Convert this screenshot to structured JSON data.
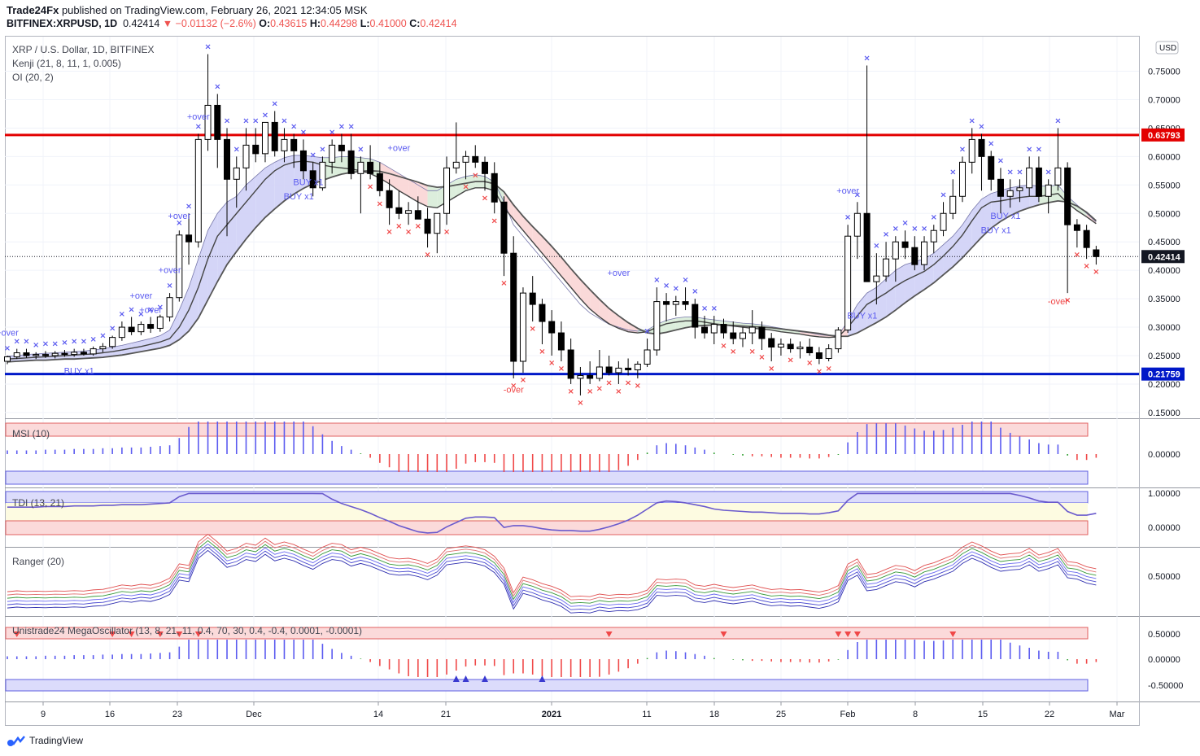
{
  "header": {
    "publisher": "Trade24Fx",
    "published_text": "published on TradingView.com, February 26, 2021 12:34:05 MSK",
    "symbol": "BITFINEX:XRPUSD, 1D",
    "last": "0.42414",
    "change": "−0.01132 (−2.6%)",
    "open_label": "O:",
    "open": "0.43615",
    "high_label": "H:",
    "high": "0.44298",
    "low_label": "L:",
    "low": "0.41000",
    "close_label": "C:",
    "close": "0.42414"
  },
  "legend": {
    "title": "XRP / U.S. Dollar, 1D, BITFINEX",
    "kenji": "Kenji (21, 8, 11, 1, 0.005)",
    "oi": "OI (20, 2)"
  },
  "panes": {
    "msi": "MSI (10)",
    "tdi": "TDI (13, 21)",
    "ranger": "Ranger (20)",
    "mega": "Unistrade24 MegaOscillator (13, 8, 21, 11, 0.4, 70, 30, 0.4, -0.4, 0.0001, -0.0001)"
  },
  "currency": "USD",
  "footer": {
    "brand": "TradingView"
  },
  "colors": {
    "up": "#ffffff",
    "down": "#000000",
    "resistance": "#e30000",
    "support": "#0018c8",
    "blue_marker": "#5b5bf0",
    "red_marker": "#f04848"
  },
  "chart_data": {
    "type": "candlestick",
    "y_ticks": [
      "0.75000",
      "0.70000",
      "0.65000",
      "0.60000",
      "0.55000",
      "0.50000",
      "0.45000",
      "0.40000",
      "0.35000",
      "0.30000",
      "0.25000",
      "0.20000",
      "0.15000"
    ],
    "x_ticks": [
      "9",
      "16",
      "23",
      "Dec",
      "14",
      "21",
      "2021",
      "11",
      "18",
      "25",
      "Feb",
      "8",
      "15",
      "22",
      "Mar"
    ],
    "resistance": {
      "value": 0.63793,
      "label": "0.63793"
    },
    "support": {
      "value": 0.21759,
      "label": "0.21759"
    },
    "last_price": {
      "value": 0.42414,
      "label": "0.42414"
    },
    "annotations": [
      "+over",
      "+over",
      "+over",
      "+over",
      "+over",
      "+over",
      "+over",
      "+over",
      "+over",
      "-over",
      "-over",
      "BUY x1",
      "BUY x1",
      "BUY x1",
      "BUY x1",
      "BUY x1",
      "BUY x1"
    ],
    "msi_ticks": [
      "0.00000"
    ],
    "tdi_ticks": [
      "1.00000",
      "0.00000"
    ],
    "ranger_ticks": [
      "0.50000"
    ],
    "mega_ticks": [
      "0.50000",
      "0.00000",
      "-0.50000"
    ],
    "candles": [
      [
        0.24,
        0.25,
        0.235,
        0.248
      ],
      [
        0.248,
        0.262,
        0.244,
        0.255
      ],
      [
        0.255,
        0.262,
        0.246,
        0.25
      ],
      [
        0.25,
        0.256,
        0.244,
        0.252
      ],
      [
        0.252,
        0.258,
        0.246,
        0.25
      ],
      [
        0.25,
        0.258,
        0.245,
        0.254
      ],
      [
        0.254,
        0.26,
        0.248,
        0.252
      ],
      [
        0.252,
        0.262,
        0.248,
        0.256
      ],
      [
        0.256,
        0.262,
        0.25,
        0.253
      ],
      [
        0.253,
        0.266,
        0.25,
        0.262
      ],
      [
        0.262,
        0.272,
        0.256,
        0.266
      ],
      [
        0.266,
        0.285,
        0.262,
        0.282
      ],
      [
        0.282,
        0.31,
        0.276,
        0.3
      ],
      [
        0.3,
        0.318,
        0.286,
        0.292
      ],
      [
        0.292,
        0.31,
        0.286,
        0.305
      ],
      [
        0.305,
        0.318,
        0.29,
        0.298
      ],
      [
        0.298,
        0.322,
        0.292,
        0.318
      ],
      [
        0.318,
        0.36,
        0.31,
        0.352
      ],
      [
        0.352,
        0.47,
        0.345,
        0.462
      ],
      [
        0.462,
        0.5,
        0.41,
        0.45
      ],
      [
        0.45,
        0.64,
        0.44,
        0.63
      ],
      [
        0.63,
        0.78,
        0.61,
        0.69
      ],
      [
        0.69,
        0.71,
        0.58,
        0.63
      ],
      [
        0.63,
        0.65,
        0.46,
        0.56
      ],
      [
        0.56,
        0.6,
        0.51,
        0.58
      ],
      [
        0.58,
        0.65,
        0.54,
        0.62
      ],
      [
        0.62,
        0.65,
        0.59,
        0.605
      ],
      [
        0.605,
        0.66,
        0.59,
        0.66
      ],
      [
        0.66,
        0.68,
        0.6,
        0.61
      ],
      [
        0.61,
        0.65,
        0.59,
        0.63
      ],
      [
        0.63,
        0.64,
        0.58,
        0.61
      ],
      [
        0.61,
        0.63,
        0.56,
        0.575
      ],
      [
        0.575,
        0.59,
        0.53,
        0.545
      ],
      [
        0.545,
        0.6,
        0.54,
        0.59
      ],
      [
        0.59,
        0.63,
        0.57,
        0.62
      ],
      [
        0.62,
        0.64,
        0.59,
        0.61
      ],
      [
        0.61,
        0.64,
        0.56,
        0.57
      ],
      [
        0.57,
        0.6,
        0.5,
        0.59
      ],
      [
        0.59,
        0.62,
        0.56,
        0.57
      ],
      [
        0.57,
        0.59,
        0.53,
        0.54
      ],
      [
        0.54,
        0.56,
        0.48,
        0.51
      ],
      [
        0.51,
        0.54,
        0.49,
        0.5
      ],
      [
        0.5,
        0.52,
        0.48,
        0.505
      ],
      [
        0.505,
        0.53,
        0.49,
        0.49
      ],
      [
        0.49,
        0.51,
        0.44,
        0.465
      ],
      [
        0.465,
        0.5,
        0.43,
        0.5
      ],
      [
        0.5,
        0.6,
        0.48,
        0.58
      ],
      [
        0.58,
        0.66,
        0.57,
        0.59
      ],
      [
        0.59,
        0.61,
        0.56,
        0.6
      ],
      [
        0.6,
        0.62,
        0.58,
        0.59
      ],
      [
        0.59,
        0.6,
        0.54,
        0.57
      ],
      [
        0.57,
        0.59,
        0.5,
        0.52
      ],
      [
        0.52,
        0.53,
        0.39,
        0.43
      ],
      [
        0.43,
        0.46,
        0.21,
        0.24
      ],
      [
        0.24,
        0.37,
        0.22,
        0.36
      ],
      [
        0.36,
        0.39,
        0.31,
        0.34
      ],
      [
        0.34,
        0.35,
        0.27,
        0.31
      ],
      [
        0.31,
        0.33,
        0.25,
        0.29
      ],
      [
        0.29,
        0.31,
        0.24,
        0.26
      ],
      [
        0.26,
        0.28,
        0.2,
        0.21
      ],
      [
        0.21,
        0.23,
        0.18,
        0.215
      ],
      [
        0.215,
        0.24,
        0.2,
        0.21
      ],
      [
        0.21,
        0.26,
        0.205,
        0.23
      ],
      [
        0.23,
        0.25,
        0.215,
        0.22
      ],
      [
        0.22,
        0.24,
        0.2,
        0.228
      ],
      [
        0.228,
        0.245,
        0.215,
        0.225
      ],
      [
        0.225,
        0.24,
        0.21,
        0.235
      ],
      [
        0.235,
        0.28,
        0.23,
        0.26
      ],
      [
        0.26,
        0.37,
        0.25,
        0.345
      ],
      [
        0.345,
        0.36,
        0.31,
        0.34
      ],
      [
        0.34,
        0.355,
        0.32,
        0.345
      ],
      [
        0.345,
        0.37,
        0.33,
        0.34
      ],
      [
        0.34,
        0.35,
        0.28,
        0.3
      ],
      [
        0.3,
        0.32,
        0.28,
        0.29
      ],
      [
        0.29,
        0.32,
        0.27,
        0.305
      ],
      [
        0.305,
        0.315,
        0.28,
        0.29
      ],
      [
        0.29,
        0.31,
        0.27,
        0.28
      ],
      [
        0.28,
        0.3,
        0.265,
        0.29
      ],
      [
        0.29,
        0.33,
        0.27,
        0.3
      ],
      [
        0.3,
        0.31,
        0.26,
        0.28
      ],
      [
        0.28,
        0.29,
        0.24,
        0.265
      ],
      [
        0.265,
        0.28,
        0.25,
        0.27
      ],
      [
        0.27,
        0.28,
        0.255,
        0.262
      ],
      [
        0.262,
        0.275,
        0.245,
        0.265
      ],
      [
        0.265,
        0.28,
        0.25,
        0.255
      ],
      [
        0.255,
        0.265,
        0.235,
        0.245
      ],
      [
        0.245,
        0.27,
        0.24,
        0.262
      ],
      [
        0.262,
        0.3,
        0.255,
        0.295
      ],
      [
        0.295,
        0.48,
        0.29,
        0.46
      ],
      [
        0.46,
        0.52,
        0.42,
        0.5
      ],
      [
        0.5,
        0.76,
        0.38,
        0.38
      ],
      [
        0.38,
        0.43,
        0.34,
        0.39
      ],
      [
        0.39,
        0.45,
        0.38,
        0.42
      ],
      [
        0.42,
        0.46,
        0.38,
        0.45
      ],
      [
        0.45,
        0.47,
        0.42,
        0.44
      ],
      [
        0.44,
        0.46,
        0.4,
        0.41
      ],
      [
        0.41,
        0.46,
        0.4,
        0.45
      ],
      [
        0.45,
        0.48,
        0.43,
        0.47
      ],
      [
        0.47,
        0.52,
        0.46,
        0.5
      ],
      [
        0.5,
        0.56,
        0.49,
        0.53
      ],
      [
        0.53,
        0.6,
        0.52,
        0.59
      ],
      [
        0.59,
        0.65,
        0.57,
        0.63
      ],
      [
        0.63,
        0.64,
        0.54,
        0.6
      ],
      [
        0.6,
        0.61,
        0.54,
        0.56
      ],
      [
        0.56,
        0.58,
        0.5,
        0.53
      ],
      [
        0.53,
        0.56,
        0.51,
        0.54
      ],
      [
        0.54,
        0.56,
        0.52,
        0.545
      ],
      [
        0.545,
        0.6,
        0.53,
        0.58
      ],
      [
        0.58,
        0.6,
        0.52,
        0.53
      ],
      [
        0.53,
        0.56,
        0.5,
        0.55
      ],
      [
        0.55,
        0.65,
        0.54,
        0.58
      ],
      [
        0.58,
        0.59,
        0.36,
        0.48
      ],
      [
        0.48,
        0.49,
        0.44,
        0.47
      ],
      [
        0.47,
        0.48,
        0.42,
        0.44
      ],
      [
        0.436,
        0.443,
        0.41,
        0.424
      ]
    ],
    "ma_upper": [
      0.249,
      0.25,
      0.252,
      0.253,
      0.254,
      0.255,
      0.256,
      0.257,
      0.258,
      0.26,
      0.262,
      0.265,
      0.268,
      0.272,
      0.276,
      0.28,
      0.285,
      0.295,
      0.33,
      0.37,
      0.42,
      0.47,
      0.5,
      0.52,
      0.53,
      0.55,
      0.565,
      0.58,
      0.59,
      0.598,
      0.602,
      0.602,
      0.6,
      0.598,
      0.598,
      0.6,
      0.6,
      0.598,
      0.596,
      0.59,
      0.58,
      0.57,
      0.56,
      0.55,
      0.54,
      0.54,
      0.55,
      0.56,
      0.565,
      0.568,
      0.565,
      0.555,
      0.52,
      0.48,
      0.46,
      0.44,
      0.42,
      0.4,
      0.38,
      0.36,
      0.34,
      0.325,
      0.315,
      0.305,
      0.3,
      0.295,
      0.293,
      0.295,
      0.305,
      0.312,
      0.316,
      0.318,
      0.318,
      0.315,
      0.313,
      0.311,
      0.309,
      0.307,
      0.306,
      0.304,
      0.301,
      0.298,
      0.295,
      0.292,
      0.29,
      0.287,
      0.285,
      0.286,
      0.31,
      0.34,
      0.36,
      0.37,
      0.385,
      0.4,
      0.41,
      0.415,
      0.42,
      0.43,
      0.445,
      0.46,
      0.48,
      0.505,
      0.525,
      0.535,
      0.54,
      0.545,
      0.548,
      0.55,
      0.548,
      0.548,
      0.55,
      0.53,
      0.515,
      0.5,
      0.485
    ],
    "ma_lower": [
      0.244,
      0.245,
      0.246,
      0.247,
      0.248,
      0.249,
      0.25,
      0.251,
      0.252,
      0.253,
      0.255,
      0.257,
      0.26,
      0.263,
      0.266,
      0.27,
      0.274,
      0.28,
      0.3,
      0.33,
      0.37,
      0.42,
      0.46,
      0.48,
      0.5,
      0.52,
      0.54,
      0.56,
      0.575,
      0.585,
      0.59,
      0.592,
      0.59,
      0.585,
      0.582,
      0.58,
      0.578,
      0.575,
      0.57,
      0.562,
      0.552,
      0.54,
      0.53,
      0.52,
      0.512,
      0.51,
      0.52,
      0.53,
      0.54,
      0.545,
      0.545,
      0.54,
      0.51,
      0.49,
      0.47,
      0.45,
      0.43,
      0.41,
      0.39,
      0.37,
      0.35,
      0.332,
      0.318,
      0.306,
      0.298,
      0.292,
      0.29,
      0.292,
      0.3,
      0.306,
      0.309,
      0.311,
      0.311,
      0.309,
      0.306,
      0.304,
      0.302,
      0.3,
      0.298,
      0.297,
      0.295,
      0.292,
      0.29,
      0.288,
      0.285,
      0.283,
      0.282,
      0.283,
      0.3,
      0.32,
      0.34,
      0.35,
      0.36,
      0.372,
      0.382,
      0.39,
      0.398,
      0.41,
      0.425,
      0.442,
      0.462,
      0.487,
      0.51,
      0.52,
      0.522,
      0.525,
      0.528,
      0.53,
      0.53,
      0.532,
      0.535,
      0.518,
      0.505,
      0.494,
      0.482
    ],
    "mid": [
      0.239,
      0.24,
      0.241,
      0.242,
      0.242,
      0.243,
      0.244,
      0.244,
      0.245,
      0.246,
      0.247,
      0.249,
      0.251,
      0.254,
      0.257,
      0.26,
      0.263,
      0.268,
      0.278,
      0.293,
      0.316,
      0.348,
      0.38,
      0.41,
      0.433,
      0.455,
      0.475,
      0.493,
      0.508,
      0.522,
      0.534,
      0.544,
      0.552,
      0.558,
      0.564,
      0.569,
      0.572,
      0.574,
      0.575,
      0.574,
      0.57,
      0.565,
      0.56,
      0.555,
      0.549,
      0.546,
      0.547,
      0.55,
      0.553,
      0.556,
      0.556,
      0.552,
      0.538,
      0.515,
      0.495,
      0.477,
      0.46,
      0.442,
      0.423,
      0.403,
      0.384,
      0.366,
      0.349,
      0.333,
      0.32,
      0.308,
      0.298,
      0.29,
      0.288,
      0.291,
      0.295,
      0.299,
      0.302,
      0.303,
      0.304,
      0.304,
      0.303,
      0.302,
      0.301,
      0.3,
      0.299,
      0.297,
      0.295,
      0.293,
      0.291,
      0.289,
      0.286,
      0.284,
      0.284,
      0.29,
      0.299,
      0.308,
      0.318,
      0.33,
      0.343,
      0.355,
      0.366,
      0.378,
      0.392,
      0.406,
      0.422,
      0.44,
      0.458,
      0.474,
      0.486,
      0.496,
      0.504,
      0.51,
      0.515,
      0.519,
      0.522,
      0.52,
      0.513,
      0.502,
      0.487
    ]
  }
}
